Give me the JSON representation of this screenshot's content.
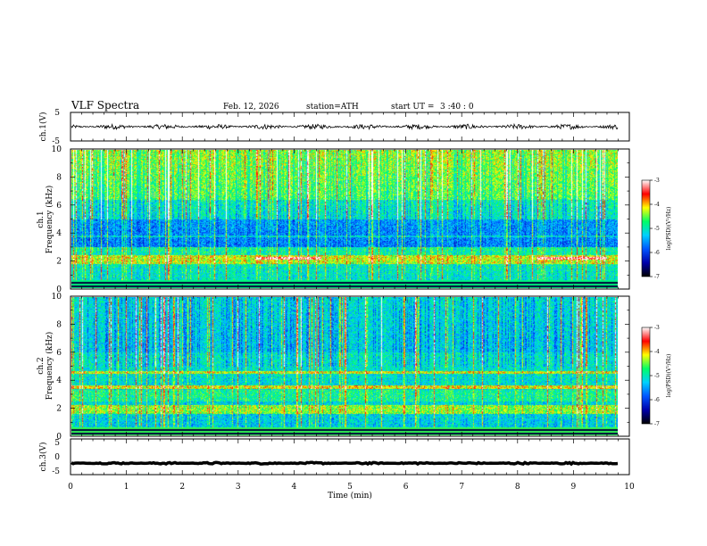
{
  "chart_data": {
    "type": "heatmap",
    "title": "VLF  Spectra",
    "date": "Feb. 12, 2026",
    "station": "station=ATH",
    "start_ut_label": "start  UT  =",
    "start_ut_value": "3  :40 : 0",
    "xlabel": "Time  (min)",
    "xlim": [
      0,
      10
    ],
    "xticks": [
      "0",
      "1",
      "2",
      "3",
      "4",
      "5",
      "6",
      "7",
      "8",
      "9",
      "10"
    ],
    "data_end_min": 9.8,
    "panels": [
      {
        "id": "ch1-waveform",
        "type": "line",
        "ylabel": "ch.1(V)",
        "ylim": [
          -5,
          5
        ],
        "yticks": [
          "5",
          "-5"
        ],
        "signal_mean": 0,
        "signal_amplitude": 0.9
      },
      {
        "id": "ch1-spectrogram",
        "type": "heatmap",
        "ylabel_line1": "ch.1",
        "ylabel_line2": "Frequency  (kHz)",
        "ylim": [
          0,
          10
        ],
        "yticks": [
          "0",
          "2",
          "4",
          "6",
          "8",
          "10"
        ],
        "z_range": [
          -7,
          -3
        ],
        "features_khz": {
          "strong_band": [
            1.8,
            2.4
          ],
          "quiet_band": [
            3.0,
            5.0
          ],
          "line_0p3": 0.3
        }
      },
      {
        "id": "ch2-spectrogram",
        "type": "heatmap",
        "ylabel_line1": "ch.2",
        "ylabel_line2": "Frequency  (kHz)",
        "ylim": [
          0,
          10
        ],
        "yticks": [
          "0",
          "2",
          "4",
          "6",
          "8",
          "10"
        ],
        "z_range": [
          -7,
          -3
        ],
        "features_khz": {
          "strong_band": [
            1.6,
            2.2
          ],
          "band_3p5": 3.5,
          "band_4p6": 4.6
        }
      },
      {
        "id": "ch3-waveform",
        "type": "line",
        "ylabel": "ch.3(V)",
        "ylim": [
          -5,
          5
        ],
        "yticks": [
          "5",
          "0",
          "-5"
        ],
        "signal_mean": -1.8,
        "signal_amplitude": 0.25
      }
    ],
    "colorbars": [
      {
        "label": "log(PSD)(V²/Hz)",
        "ticks": [
          "-3",
          "-4",
          "-5",
          "-6",
          "-7"
        ],
        "stops": [
          "#000000",
          "#0000aa",
          "#0055ff",
          "#00d0ff",
          "#00ff66",
          "#ffff00",
          "#ff0000",
          "#ffffff"
        ]
      },
      {
        "label": "log(PSD)(V²/Hz)",
        "ticks": [
          "-3",
          "-4",
          "-5",
          "-6",
          "-7"
        ],
        "stops": [
          "#000000",
          "#0000aa",
          "#0055ff",
          "#00d0ff",
          "#00ff66",
          "#ffff00",
          "#ff0000",
          "#ffffff"
        ]
      }
    ]
  }
}
